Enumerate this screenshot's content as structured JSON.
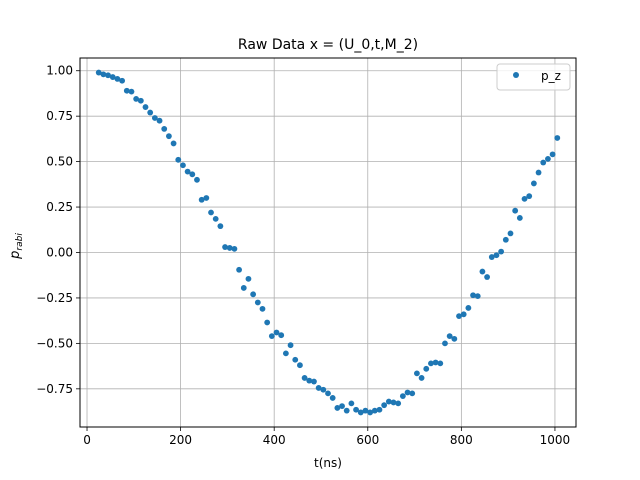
{
  "chart_data": {
    "type": "scatter",
    "title": "Raw Data x = (U_0,t,M_2)",
    "xlabel": "t(ns)",
    "ylabel_main": "p",
    "ylabel_sub": "rabi",
    "xlim": [
      -15,
      1045
    ],
    "ylim": [
      -0.96,
      1.07
    ],
    "xticks": [
      0,
      200,
      400,
      600,
      800,
      1000
    ],
    "xtick_labels": [
      "0",
      "200",
      "400",
      "600",
      "800",
      "1000"
    ],
    "yticks": [
      1.0,
      0.75,
      0.5,
      0.25,
      0.0,
      -0.25,
      -0.5,
      -0.75
    ],
    "ytick_labels": [
      "1.00",
      "0.75",
      "0.50",
      "0.25",
      "0.00",
      "−0.25",
      "−0.50",
      "−0.75"
    ],
    "grid": true,
    "legend_position": "top-right",
    "series": [
      {
        "name": "p_z",
        "color": "#1f77b4",
        "marker": "circle",
        "points": [
          [
            25,
            0.99
          ],
          [
            35,
            0.98
          ],
          [
            45,
            0.975
          ],
          [
            55,
            0.965
          ],
          [
            65,
            0.955
          ],
          [
            75,
            0.945
          ],
          [
            85,
            0.89
          ],
          [
            95,
            0.885
          ],
          [
            105,
            0.845
          ],
          [
            115,
            0.835
          ],
          [
            125,
            0.8
          ],
          [
            135,
            0.77
          ],
          [
            145,
            0.74
          ],
          [
            155,
            0.725
          ],
          [
            165,
            0.68
          ],
          [
            175,
            0.64
          ],
          [
            185,
            0.6
          ],
          [
            195,
            0.51
          ],
          [
            205,
            0.48
          ],
          [
            215,
            0.445
          ],
          [
            225,
            0.43
          ],
          [
            235,
            0.4
          ],
          [
            245,
            0.29
          ],
          [
            255,
            0.3
          ],
          [
            265,
            0.22
          ],
          [
            275,
            0.185
          ],
          [
            285,
            0.145
          ],
          [
            295,
            0.03
          ],
          [
            305,
            0.025
          ],
          [
            315,
            0.02
          ],
          [
            325,
            -0.095
          ],
          [
            335,
            -0.195
          ],
          [
            345,
            -0.145
          ],
          [
            355,
            -0.23
          ],
          [
            365,
            -0.275
          ],
          [
            375,
            -0.31
          ],
          [
            385,
            -0.385
          ],
          [
            395,
            -0.46
          ],
          [
            405,
            -0.44
          ],
          [
            415,
            -0.455
          ],
          [
            425,
            -0.555
          ],
          [
            435,
            -0.51
          ],
          [
            445,
            -0.59
          ],
          [
            455,
            -0.62
          ],
          [
            465,
            -0.69
          ],
          [
            475,
            -0.705
          ],
          [
            485,
            -0.71
          ],
          [
            495,
            -0.745
          ],
          [
            505,
            -0.755
          ],
          [
            515,
            -0.775
          ],
          [
            525,
            -0.8
          ],
          [
            535,
            -0.855
          ],
          [
            545,
            -0.845
          ],
          [
            555,
            -0.87
          ],
          [
            565,
            -0.83
          ],
          [
            575,
            -0.865
          ],
          [
            585,
            -0.88
          ],
          [
            595,
            -0.87
          ],
          [
            605,
            -0.88
          ],
          [
            615,
            -0.87
          ],
          [
            625,
            -0.865
          ],
          [
            635,
            -0.84
          ],
          [
            645,
            -0.82
          ],
          [
            655,
            -0.825
          ],
          [
            665,
            -0.83
          ],
          [
            675,
            -0.79
          ],
          [
            685,
            -0.77
          ],
          [
            695,
            -0.775
          ],
          [
            705,
            -0.665
          ],
          [
            715,
            -0.69
          ],
          [
            725,
            -0.64
          ],
          [
            735,
            -0.61
          ],
          [
            745,
            -0.605
          ],
          [
            755,
            -0.61
          ],
          [
            765,
            -0.5
          ],
          [
            775,
            -0.46
          ],
          [
            785,
            -0.475
          ],
          [
            795,
            -0.35
          ],
          [
            805,
            -0.34
          ],
          [
            815,
            -0.305
          ],
          [
            825,
            -0.235
          ],
          [
            835,
            -0.24
          ],
          [
            845,
            -0.105
          ],
          [
            855,
            -0.135
          ],
          [
            865,
            -0.025
          ],
          [
            875,
            -0.015
          ],
          [
            885,
            0.005
          ],
          [
            895,
            0.07
          ],
          [
            905,
            0.105
          ],
          [
            915,
            0.23
          ],
          [
            925,
            0.19
          ],
          [
            935,
            0.295
          ],
          [
            945,
            0.31
          ],
          [
            955,
            0.38
          ],
          [
            965,
            0.44
          ],
          [
            975,
            0.495
          ],
          [
            985,
            0.515
          ],
          [
            995,
            0.54
          ],
          [
            1005,
            0.63
          ]
        ]
      }
    ]
  }
}
